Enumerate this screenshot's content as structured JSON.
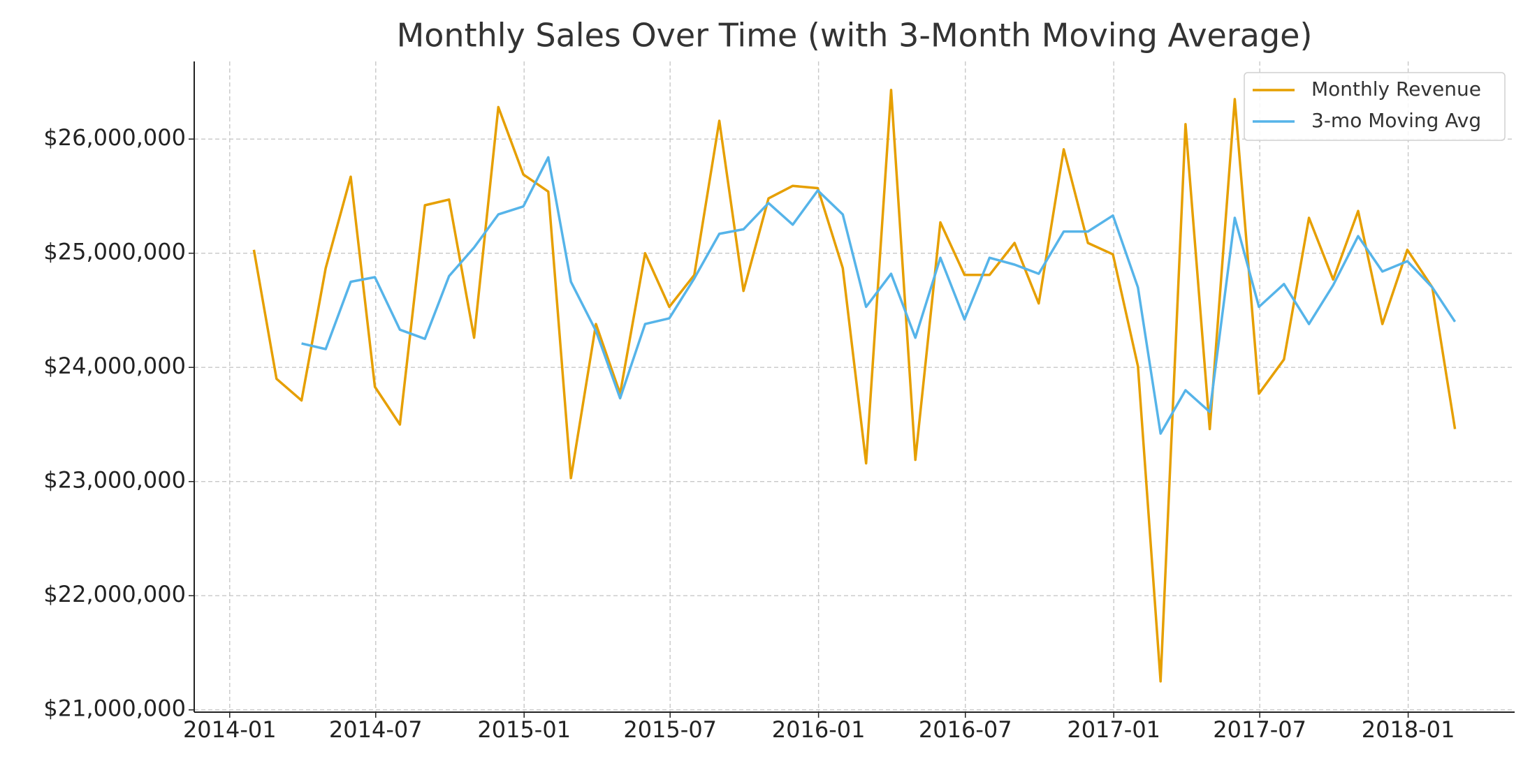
{
  "chart_data": {
    "type": "line",
    "title": "Monthly Sales Over Time (with 3-Month Moving Average)",
    "x": [
      "2014-01",
      "2014-02",
      "2014-03",
      "2014-04",
      "2014-05",
      "2014-06",
      "2014-07",
      "2014-08",
      "2014-09",
      "2014-10",
      "2014-11",
      "2014-12",
      "2015-01",
      "2015-02",
      "2015-03",
      "2015-04",
      "2015-05",
      "2015-06",
      "2015-07",
      "2015-08",
      "2015-09",
      "2015-10",
      "2015-11",
      "2015-12",
      "2016-01",
      "2016-02",
      "2016-03",
      "2016-04",
      "2016-05",
      "2016-06",
      "2016-07",
      "2016-08",
      "2016-09",
      "2016-10",
      "2016-11",
      "2016-12",
      "2017-01",
      "2017-02",
      "2017-03",
      "2017-04",
      "2017-05",
      "2017-06",
      "2017-07",
      "2017-08",
      "2017-09",
      "2017-10",
      "2017-11",
      "2017-12",
      "2018-01",
      "2018-02"
    ],
    "series": [
      {
        "name": "Monthly Revenue",
        "color": "#E69F00",
        "values": [
          25030000,
          23900000,
          23710000,
          24870000,
          25670000,
          23830000,
          23500000,
          25420000,
          25470000,
          24260000,
          26280000,
          25690000,
          25540000,
          23030000,
          24380000,
          23770000,
          25000000,
          24530000,
          24810000,
          26160000,
          24670000,
          25480000,
          25590000,
          25570000,
          24870000,
          23160000,
          26430000,
          23190000,
          25270000,
          24810000,
          24810000,
          25090000,
          24560000,
          25910000,
          25090000,
          24990000,
          24010000,
          21250000,
          26130000,
          23460000,
          26350000,
          23770000,
          24070000,
          25310000,
          24770000,
          25370000,
          24380000,
          25030000,
          24700000,
          23460000
        ]
      },
      {
        "name": "3-mo Moving Avg",
        "color": "#56B4E9",
        "values": [
          null,
          null,
          24210000,
          24160000,
          24750000,
          24790000,
          24330000,
          24250000,
          24800000,
          25050000,
          25340000,
          25410000,
          25840000,
          24750000,
          24320000,
          23730000,
          24380000,
          24430000,
          24780000,
          25170000,
          25210000,
          25440000,
          25250000,
          25550000,
          25340000,
          24530000,
          24820000,
          24260000,
          24960000,
          24420000,
          24960000,
          24900000,
          24820000,
          25190000,
          25190000,
          25330000,
          24700000,
          23420000,
          23800000,
          23610000,
          25310000,
          24530000,
          24730000,
          24380000,
          24720000,
          25150000,
          24840000,
          24930000,
          24700000,
          24400000
        ]
      }
    ],
    "xlim": [
      "2013-11-18",
      "2018-05-13"
    ],
    "xticks": [
      "2014-01",
      "2014-07",
      "2015-01",
      "2015-07",
      "2016-01",
      "2016-07",
      "2017-01",
      "2017-07",
      "2018-01"
    ],
    "ylim": [
      20980000,
      26680000
    ],
    "yticks": [
      {
        "value": 21000000,
        "label": "$21,000,000"
      },
      {
        "value": 22000000,
        "label": "$22,000,000"
      },
      {
        "value": 23000000,
        "label": "$23,000,000"
      },
      {
        "value": 24000000,
        "label": "$24,000,000"
      },
      {
        "value": 25000000,
        "label": "$25,000,000"
      },
      {
        "value": 26000000,
        "label": "$26,000,000"
      }
    ],
    "grid": true,
    "legend": "upper right"
  }
}
